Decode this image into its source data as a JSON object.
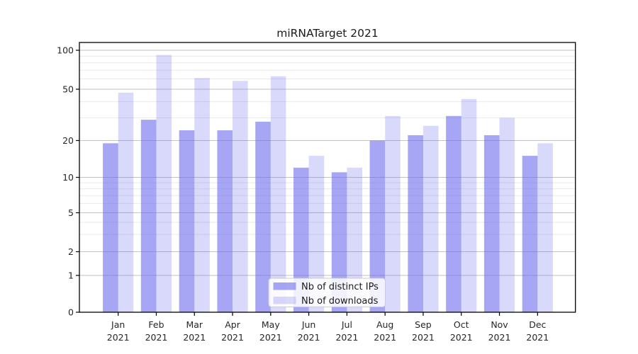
{
  "chart_data": {
    "type": "bar",
    "title": "miRNATarget 2021",
    "y_scale": "log-like (symlog), ticks 0,1,2,5,10,20,50,100",
    "grid": true,
    "legend_position": "lower center",
    "categories": [
      {
        "month": "Jan",
        "year": "2021"
      },
      {
        "month": "Feb",
        "year": "2021"
      },
      {
        "month": "Mar",
        "year": "2021"
      },
      {
        "month": "Apr",
        "year": "2021"
      },
      {
        "month": "May",
        "year": "2021"
      },
      {
        "month": "Jun",
        "year": "2021"
      },
      {
        "month": "Jul",
        "year": "2021"
      },
      {
        "month": "Aug",
        "year": "2021"
      },
      {
        "month": "Sep",
        "year": "2021"
      },
      {
        "month": "Oct",
        "year": "2021"
      },
      {
        "month": "Nov",
        "year": "2021"
      },
      {
        "month": "Dec",
        "year": "2021"
      }
    ],
    "series": [
      {
        "name": "Nb of distinct IPs",
        "key": "distinct-ips",
        "values": [
          19,
          29,
          24,
          24,
          28,
          12,
          11,
          20,
          22,
          31,
          22,
          15
        ],
        "color": "#6666ee",
        "alpha": 0.58
      },
      {
        "name": "Nb of downloads",
        "key": "downloads",
        "values": [
          47,
          92,
          61,
          58,
          63,
          15,
          12,
          31,
          26,
          42,
          30,
          19
        ],
        "color": "#6666ee",
        "alpha": 0.25
      }
    ],
    "y_ticks": [
      0,
      1,
      2,
      5,
      10,
      20,
      50,
      100
    ],
    "y_minor_ticks": [
      3,
      4,
      6,
      7,
      8,
      9,
      30,
      40,
      60,
      70,
      80,
      90
    ],
    "ylim": [
      0,
      105
    ]
  },
  "colors": {
    "bar_base": "#6666ee",
    "grid_major": "#c2c2c2",
    "grid_minor": "#e9e9e9",
    "axis": "#000000",
    "tick_text": "#262626"
  }
}
